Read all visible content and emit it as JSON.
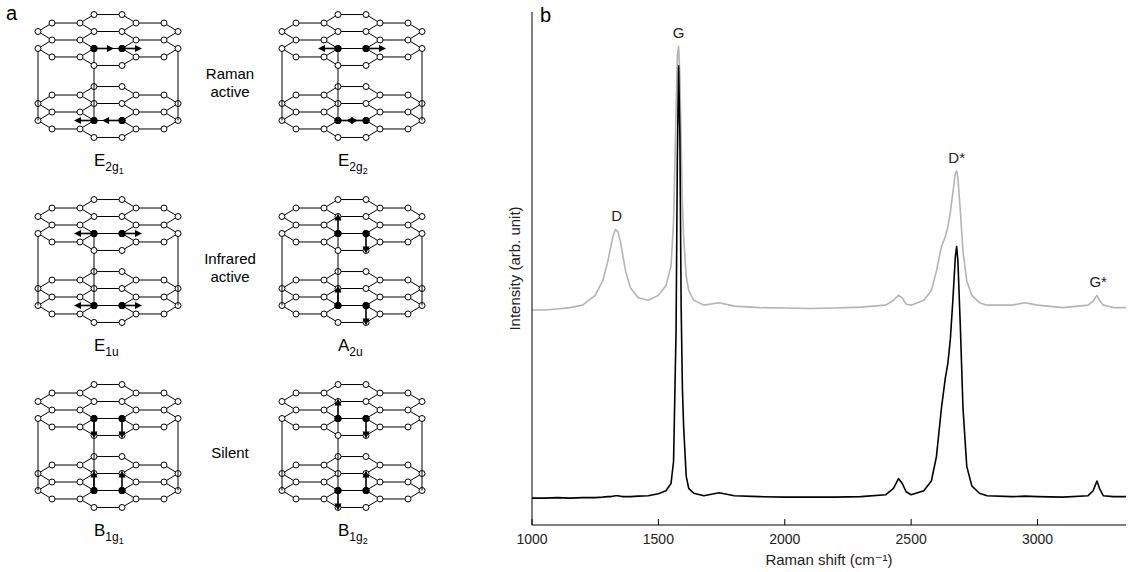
{
  "diagram": {
    "panel_label": "a",
    "groups": [
      {
        "text": "Raman active",
        "modes": [
          {
            "symbol": "E",
            "sub": "2g",
            "subsub": "1"
          },
          {
            "symbol": "E",
            "sub": "2g",
            "subsub": "2"
          }
        ]
      },
      {
        "text": "Infrared active",
        "modes": [
          {
            "symbol": "E",
            "sub": "1u"
          },
          {
            "symbol": "A",
            "sub": "2u"
          }
        ]
      },
      {
        "text": "Silent",
        "modes": [
          {
            "symbol": "B",
            "sub": "1g",
            "subsub": "1"
          },
          {
            "symbol": "B",
            "sub": "1g",
            "subsub": "2"
          }
        ]
      }
    ]
  },
  "chart_data": {
    "type": "line",
    "panel_label": "b",
    "x_label": "Raman shift (cm⁻¹)",
    "y_label": "Intensity (arb. unit)",
    "x": [
      1000,
      1050,
      1100,
      1150,
      1200,
      1250,
      1280,
      1300,
      1310,
      1320,
      1330,
      1340,
      1350,
      1360,
      1370,
      1390,
      1420,
      1460,
      1500,
      1530,
      1550,
      1560,
      1570,
      1575,
      1580,
      1585,
      1590,
      1595,
      1600,
      1610,
      1620,
      1640,
      1680,
      1740,
      1800,
      1900,
      2000,
      2100,
      2200,
      2300,
      2400,
      2430,
      2450,
      2465,
      2480,
      2500,
      2550,
      2580,
      2600,
      2620,
      2635,
      2645,
      2655,
      2665,
      2675,
      2680,
      2685,
      2695,
      2705,
      2720,
      2740,
      2770,
      2800,
      2900,
      2950,
      3000,
      3100,
      3200,
      3220,
      3235,
      3245,
      3260,
      3300,
      3350
    ],
    "series": [
      {
        "color": "#b4b4b4",
        "line_style": "solid",
        "values": [
          44,
          44,
          44.2,
          44.5,
          45,
          47,
          50,
          54,
          56.5,
          59,
          60.5,
          60,
          58,
          55,
          52,
          48.5,
          46.5,
          46,
          47,
          49,
          53,
          62,
          85,
          96,
          98,
          92,
          78,
          66,
          59,
          51,
          48,
          46,
          45,
          45.5,
          44.8,
          44.5,
          44.4,
          44.3,
          44.4,
          44.6,
          45,
          46,
          47,
          46.5,
          45.2,
          45,
          46,
          48,
          52,
          57,
          59,
          61,
          64,
          68,
          72,
          72.5,
          71,
          64,
          56,
          50,
          47,
          45.5,
          45,
          45,
          45.5,
          45,
          44.5,
          45,
          45.8,
          47,
          46,
          45,
          44.5,
          44.5
        ]
      },
      {
        "color": "#000000",
        "line_style": "solid",
        "values": [
          5.5,
          5.5,
          5.6,
          5.5,
          5.6,
          5.6,
          5.7,
          5.8,
          5.8,
          5.9,
          6,
          6,
          5.9,
          5.8,
          5.8,
          5.8,
          5.9,
          6,
          6.4,
          7,
          8.5,
          13,
          40,
          75,
          94,
          80,
          45,
          28,
          20,
          10,
          7.5,
          6.5,
          6,
          6.6,
          6,
          5.8,
          5.7,
          5.7,
          5.7,
          5.8,
          6.2,
          7.5,
          9.5,
          8.5,
          6.8,
          6.2,
          7,
          9,
          14,
          24,
          30,
          33,
          38,
          46,
          55,
          57,
          54,
          40,
          24,
          12,
          8,
          6.5,
          6,
          5.8,
          5.9,
          5.8,
          5.7,
          6,
          7,
          9,
          7.5,
          6,
          5.8,
          5.8
        ]
      }
    ],
    "annotations": [
      {
        "text": "D",
        "x": 1335
      },
      {
        "text": "G",
        "x": 1580
      },
      {
        "text": "D*",
        "x": 2680
      },
      {
        "text": "G*",
        "x": 3240
      }
    ],
    "xlim": [
      1000,
      3350
    ],
    "xticks": [
      1000,
      1500,
      2000,
      2500,
      3000
    ],
    "ylim": [
      0,
      105
    ],
    "tick_labels": "x",
    "grid": false
  }
}
